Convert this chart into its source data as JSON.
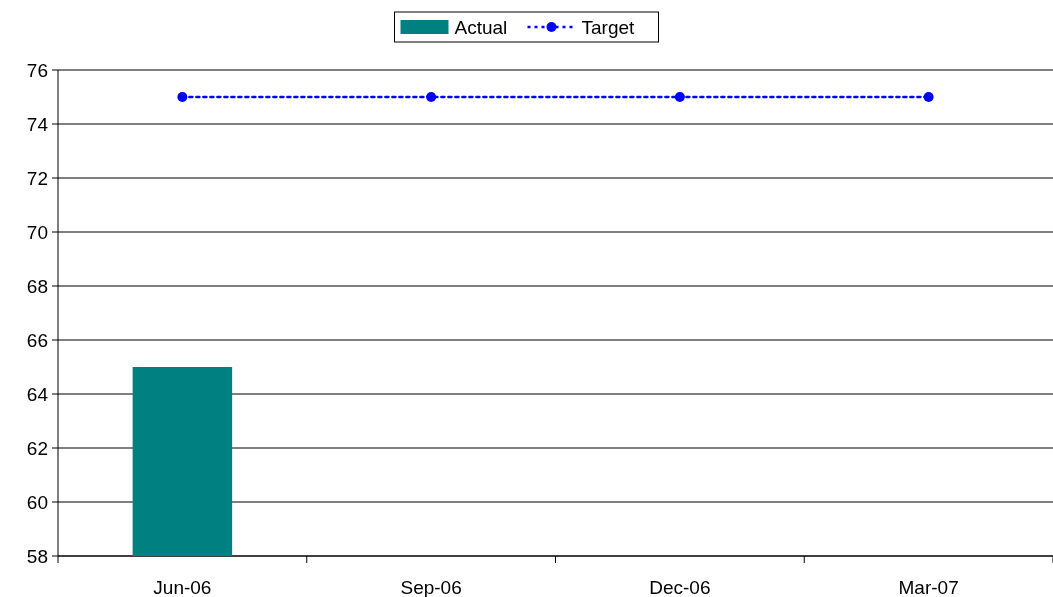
{
  "chart_data": {
    "type": "bar",
    "categories": [
      "Jun-06",
      "Sep-06",
      "Dec-06",
      "Mar-07"
    ],
    "series": [
      {
        "name": "Actual",
        "color": "#008080",
        "values": [
          65,
          null,
          null,
          null
        ]
      },
      {
        "name": "Target",
        "type": "line",
        "color": "#0000ff",
        "values": [
          75,
          75,
          75,
          75
        ]
      }
    ],
    "ylim": [
      58,
      76
    ],
    "yticks": [
      58,
      60,
      62,
      64,
      66,
      68,
      70,
      72,
      74,
      76
    ],
    "grid": "y",
    "legend": "top",
    "marker": "circle",
    "line_style": "dotted"
  }
}
